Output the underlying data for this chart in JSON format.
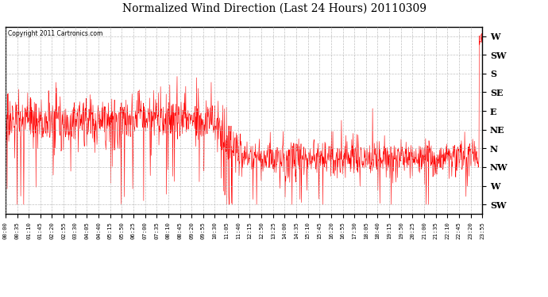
{
  "title": "Normalized Wind Direction (Last 24 Hours) 20110309",
  "copyright_text": "Copyright 2011 Cartronics.com",
  "line_color": "#ff0000",
  "background_color": "#ffffff",
  "grid_color": "#b0b0b0",
  "ytick_labels": [
    "W",
    "SW",
    "S",
    "SE",
    "E",
    "NE",
    "N",
    "NW",
    "W",
    "SW"
  ],
  "ytick_values": [
    9,
    8,
    7,
    6,
    5,
    4,
    3,
    2,
    1,
    0
  ],
  "ylim": [
    -0.5,
    9.5
  ],
  "xtick_labels": [
    "00:00",
    "00:35",
    "01:10",
    "01:45",
    "02:20",
    "02:55",
    "03:30",
    "04:05",
    "04:40",
    "05:15",
    "05:50",
    "06:25",
    "07:00",
    "07:35",
    "08:10",
    "08:45",
    "09:20",
    "09:55",
    "10:30",
    "11:05",
    "11:40",
    "12:15",
    "12:50",
    "13:25",
    "14:00",
    "14:35",
    "15:10",
    "15:45",
    "16:20",
    "16:55",
    "17:30",
    "18:05",
    "18:40",
    "19:15",
    "19:50",
    "20:25",
    "21:00",
    "21:35",
    "22:10",
    "22:45",
    "23:20",
    "23:55"
  ]
}
